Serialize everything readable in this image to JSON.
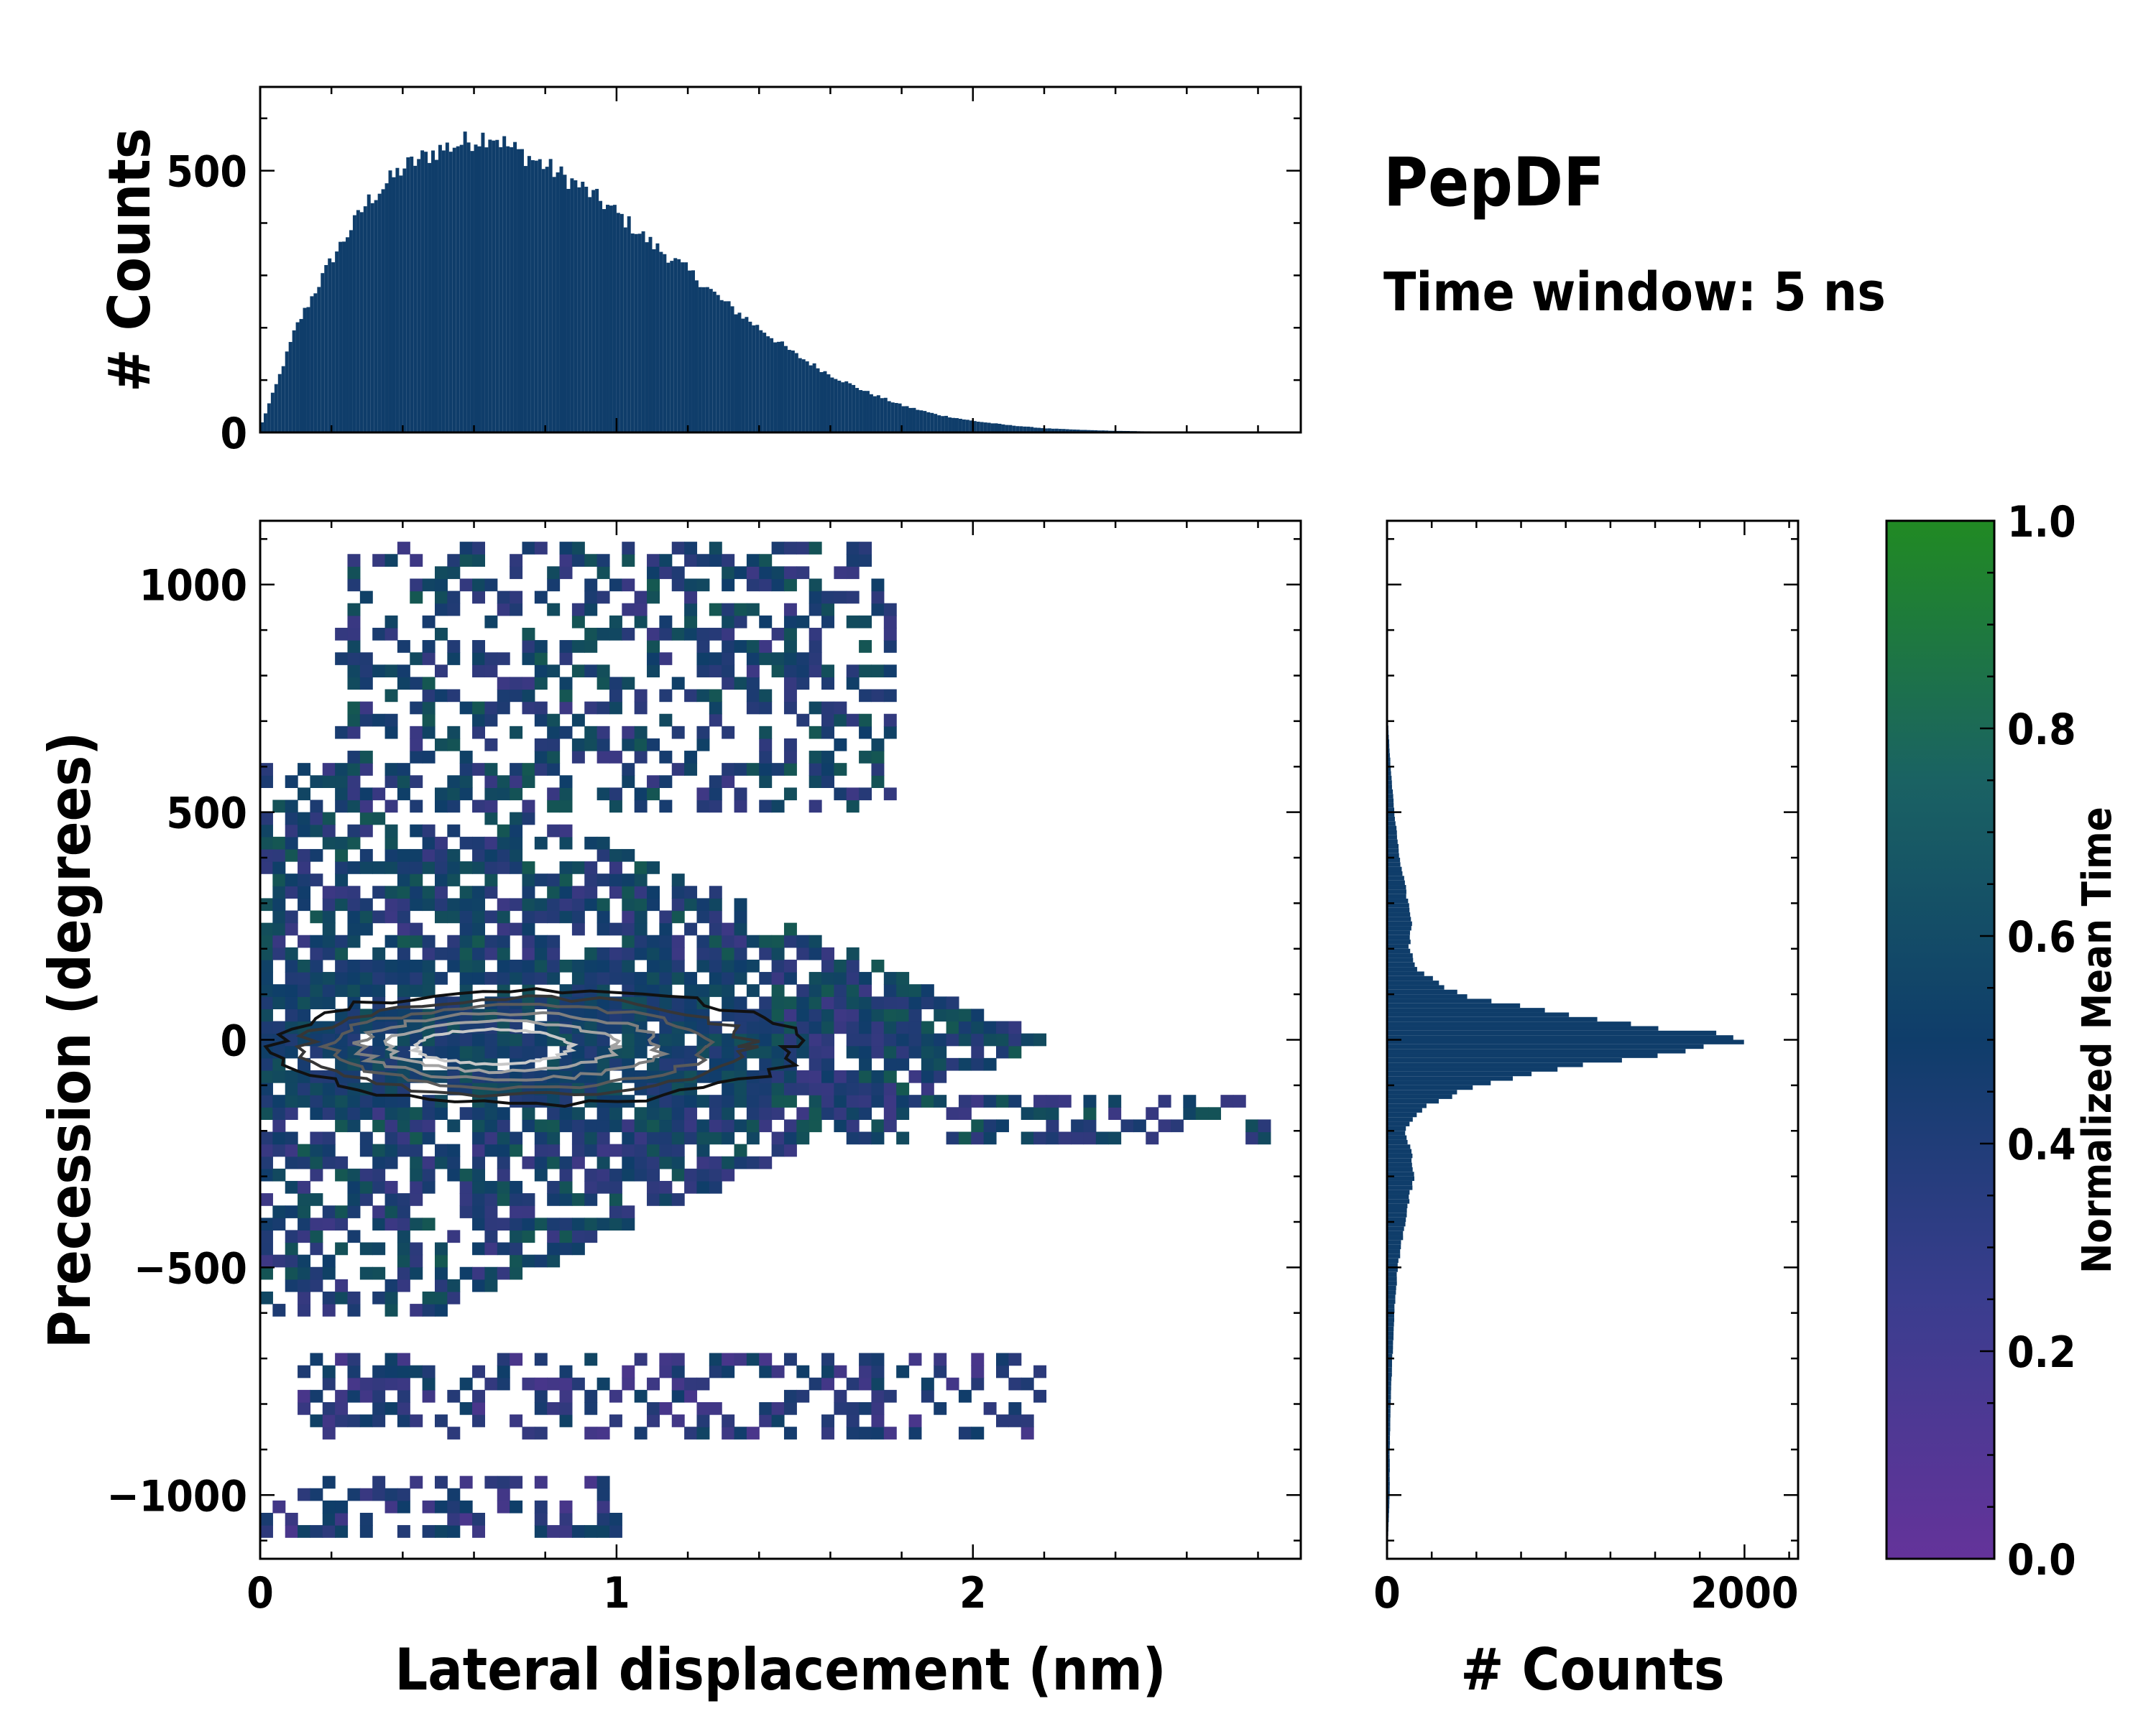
{
  "figure": {
    "title": "PepDF",
    "subtitle": "Time window: 5 ns"
  },
  "colors": {
    "cmap_low": "#64339a",
    "cmap_mid": "#0f3d6a",
    "cmap_high": "#218a23",
    "hist_bar": "#0f3d6a",
    "contour_outer": "#111111",
    "contour_inner": "#c8c8c8"
  },
  "chart_data": [
    {
      "id": "top_histogram",
      "type": "bar",
      "description_axis": "x",
      "xlim": [
        0,
        2.92
      ],
      "ylim": [
        0,
        660
      ],
      "ylabel": "# Counts",
      "xlabel": "",
      "x_ticks": [
        0,
        1,
        2
      ],
      "x_tick_labels": [],
      "y_ticks": [
        0,
        500
      ],
      "y_tick_labels": [
        "0",
        "500"
      ],
      "bin_width": 0.01,
      "envelope": {
        "x": [
          0,
          0.05,
          0.1,
          0.2,
          0.3,
          0.4,
          0.5,
          0.6,
          0.65,
          0.7,
          0.8,
          0.9,
          1.0,
          1.1,
          1.2,
          1.3,
          1.4,
          1.5,
          1.6,
          1.7,
          1.8,
          1.9,
          2.0,
          2.1,
          2.2,
          2.3,
          2.4,
          2.5,
          2.6,
          2.7
        ],
        "counts": [
          10,
          100,
          200,
          330,
          440,
          505,
          540,
          560,
          570,
          545,
          510,
          470,
          420,
          360,
          310,
          250,
          200,
          150,
          110,
          78,
          52,
          34,
          22,
          14,
          8,
          5,
          3,
          2,
          1,
          0
        ]
      }
    },
    {
      "id": "joint_heatmap",
      "type": "heatmap",
      "xlabel": "Lateral displacement (nm)",
      "ylabel": "Precession (degrees)",
      "xlim": [
        0,
        2.92
      ],
      "ylim": [
        -1140,
        1140
      ],
      "x_ticks": [
        0,
        1,
        2
      ],
      "x_tick_labels": [
        "0",
        "1",
        "2"
      ],
      "y_ticks": [
        -1000,
        -500,
        0,
        500,
        1000
      ],
      "y_tick_labels": [
        "−1000",
        "−500",
        "0",
        "500",
        "1000"
      ],
      "color_label": "Normalized Mean Time",
      "color_range": [
        0.0,
        1.0
      ],
      "main_cloud": {
        "x_range": [
          0,
          2.2
        ],
        "y_range": [
          -600,
          600
        ],
        "y_center": 0
      },
      "lobes": [
        {
          "x_range": [
            0.2,
            1.8
          ],
          "y_range": [
            500,
            1100
          ]
        },
        {
          "x_range": [
            0.1,
            2.2
          ],
          "y_range": [
            -870,
            -700
          ]
        },
        {
          "x_range": [
            0.0,
            1.0
          ],
          "y_range": [
            -1080,
            -950
          ]
        },
        {
          "x_range": [
            1.5,
            2.85
          ],
          "y_range": [
            -240,
            -120
          ]
        }
      ],
      "density_contour": {
        "x_range": [
          0.05,
          1.5
        ],
        "y_range": [
          -140,
          110
        ],
        "peak_x": 0.6,
        "levels": 6
      }
    },
    {
      "id": "right_histogram",
      "type": "bar",
      "orientation": "horizontal",
      "xlabel": "# Counts",
      "xlim": [
        0,
        2300
      ],
      "ylim": [
        -1140,
        1140
      ],
      "x_ticks": [
        0,
        2000
      ],
      "x_tick_labels": [
        "0",
        "2000"
      ],
      "y_ticks": [
        -1000,
        -500,
        0,
        500,
        1000
      ],
      "bin_width_deg": 10,
      "envelope": {
        "y": [
          -1100,
          -1000,
          -900,
          -800,
          -700,
          -600,
          -500,
          -400,
          -300,
          -250,
          -200,
          -150,
          -100,
          -50,
          0,
          50,
          100,
          150,
          200,
          250,
          300,
          400,
          500,
          600,
          700
        ],
        "counts": [
          5,
          15,
          15,
          20,
          30,
          40,
          60,
          100,
          150,
          140,
          100,
          200,
          500,
          1200,
          2090,
          1100,
          400,
          180,
          120,
          140,
          120,
          70,
          40,
          20,
          5
        ]
      }
    },
    {
      "id": "colorbar",
      "type": "colorbar",
      "label": "Normalized Mean Time",
      "range": [
        0.0,
        1.0
      ],
      "ticks": [
        0.0,
        0.2,
        0.4,
        0.6,
        0.8,
        1.0
      ],
      "tick_labels": [
        "0.0",
        "0.2",
        "0.4",
        "0.6",
        "0.8",
        "1.0"
      ]
    }
  ]
}
